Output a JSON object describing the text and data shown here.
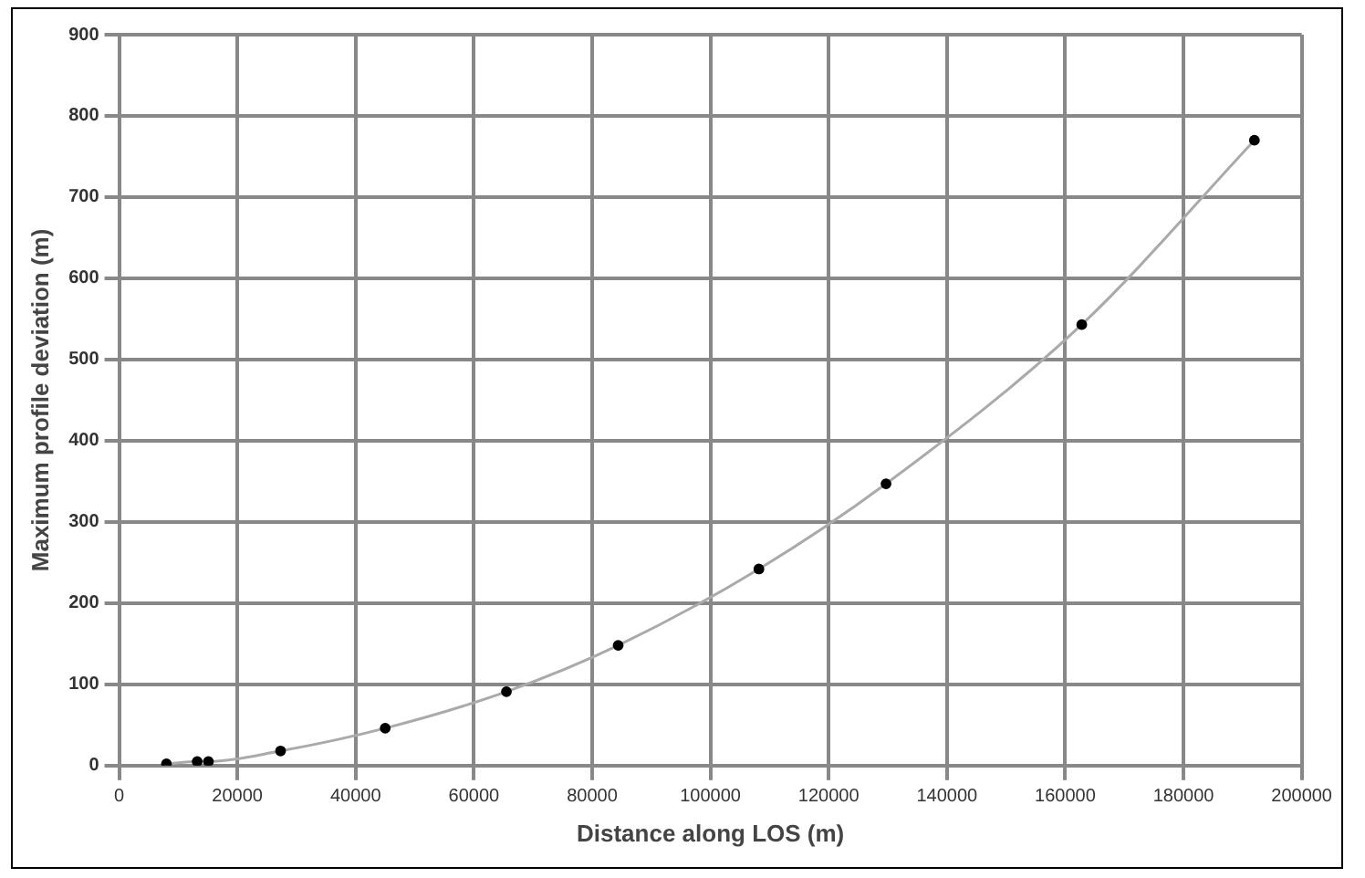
{
  "chart_data": {
    "type": "scatter",
    "xlabel": "Distance along LOS (m)",
    "ylabel": "Maximum profile deviation (m)",
    "xlim": [
      0,
      200000
    ],
    "xticks": [
      0,
      20000,
      40000,
      60000,
      80000,
      100000,
      120000,
      140000,
      160000,
      180000,
      200000
    ],
    "ylim": [
      0,
      900
    ],
    "yticks": [
      0,
      100,
      200,
      300,
      400,
      500,
      600,
      700,
      800,
      900
    ],
    "grid": true,
    "legend": false,
    "series": [
      {
        "type": "line",
        "color": "#aaaaaa",
        "marker": "none",
        "x": [
          8000,
          13200,
          15100,
          27300,
          45000,
          65500,
          84400,
          108200,
          129700,
          162800,
          192000
        ],
        "values": [
          2,
          5,
          5,
          18,
          46,
          91,
          148,
          242,
          347,
          543,
          770
        ]
      },
      {
        "color": "#000000",
        "marker": "circle",
        "x": [
          8000,
          13200,
          15100,
          27300,
          45000,
          65500,
          84400,
          108200,
          129700,
          162800,
          192000
        ],
        "values": [
          2,
          5,
          5,
          18,
          46,
          91,
          148,
          242,
          347,
          543,
          770
        ]
      }
    ]
  }
}
